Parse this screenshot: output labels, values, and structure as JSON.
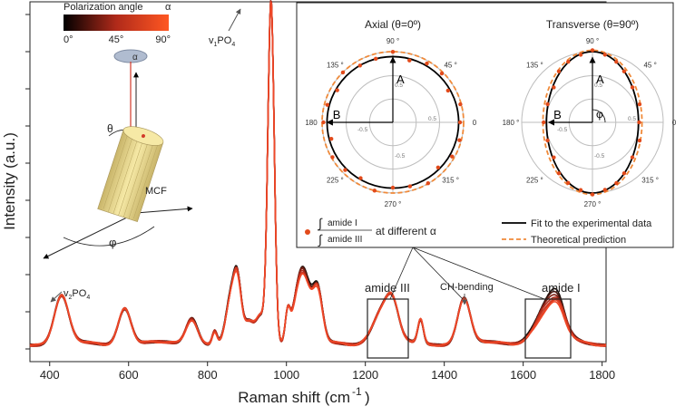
{
  "chart_data": [
    {
      "type": "line",
      "xlabel_main": "Raman shift (cm",
      "xlabel_sup": "-1",
      "xlabel_close": ")",
      "ylabel": "Intensity (a.u.)",
      "xlim": [
        350,
        1810
      ],
      "x_ticks": [
        400,
        600,
        800,
        1000,
        1200,
        1400,
        1600,
        1800
      ],
      "colorbar": {
        "title": "Polarization angle",
        "symbol": "α",
        "ticks": [
          "0°",
          "45°",
          "90°"
        ],
        "colors": [
          "#000000",
          "#c0392b",
          "#ff5722"
        ]
      },
      "angles": [
        0,
        15,
        30,
        45,
        60,
        75,
        90
      ],
      "peaks": [
        {
          "x": 430,
          "w": 18,
          "h": 52
        },
        {
          "x": 590,
          "w": 16,
          "h": 40
        },
        {
          "x": 760,
          "w": 15,
          "h": 28
        },
        {
          "x": 818,
          "w": 6,
          "h": 14
        },
        {
          "x": 858,
          "w": 12,
          "h": 44
        },
        {
          "x": 876,
          "w": 10,
          "h": 62
        },
        {
          "x": 905,
          "w": 12,
          "h": 22
        },
        {
          "x": 935,
          "w": 12,
          "h": 30
        },
        {
          "x": 961,
          "w": 8,
          "h": 378
        },
        {
          "x": 1003,
          "w": 6,
          "h": 28
        },
        {
          "x": 1040,
          "w": 20,
          "h": 78
        },
        {
          "x": 1080,
          "w": 12,
          "h": 50
        },
        {
          "x": 1245,
          "w": 25,
          "h": 38
        },
        {
          "x": 1270,
          "w": 15,
          "h": 28
        },
        {
          "x": 1340,
          "w": 7,
          "h": 26
        },
        {
          "x": 1450,
          "w": 16,
          "h": 50
        },
        {
          "x": 1665,
          "w": 32,
          "h": 38
        },
        {
          "x": 1690,
          "w": 16,
          "h": 14
        }
      ],
      "annotations": {
        "v2po4": {
          "base": "v",
          "sub1": "2",
          "mid": "PO",
          "sub2": "4"
        },
        "v1po4": {
          "base": "v",
          "sub1": "1",
          "mid": "PO",
          "sub2": "4"
        },
        "amide3": "amide III",
        "chbend": "CH-bending",
        "amide1": "amide I"
      },
      "schematic": {
        "alpha": "α",
        "theta": "θ",
        "phi": "φ",
        "fiber_label": "MCF"
      }
    },
    {
      "type": "polar",
      "panels": [
        {
          "title": "Axial (θ=0º)",
          "angle_labels": [
            "90 °",
            "45 °",
            "0",
            "315 °",
            "270 °",
            "225 °",
            "180",
            "135 °"
          ],
          "radial_labels": [
            "0.5",
            "0.5",
            "-0.5",
            "-0.5"
          ],
          "vector_labels": [
            "A",
            "B"
          ],
          "fit_radius": 0.93,
          "theory_radius": 1.0
        },
        {
          "title": "Transverse (θ=90º)",
          "angle_labels": [
            "90 °",
            "45 °",
            "0",
            "315 °",
            "270 °",
            "225 °",
            "180 °",
            "135 °"
          ],
          "radial_labels": [
            "0.5",
            "0.5",
            "-0.5",
            "-0.5"
          ],
          "vector_labels": [
            "A",
            "B",
            "φ"
          ],
          "fit_rx": 0.65,
          "fit_ry": 1.0
        }
      ],
      "legend": {
        "scatter_num": "amide I",
        "scatter_den": "amide III",
        "scatter_suffix": "at different  α",
        "fit": "Fit to the experimental data",
        "theory": "Theoretical prediction"
      }
    }
  ]
}
